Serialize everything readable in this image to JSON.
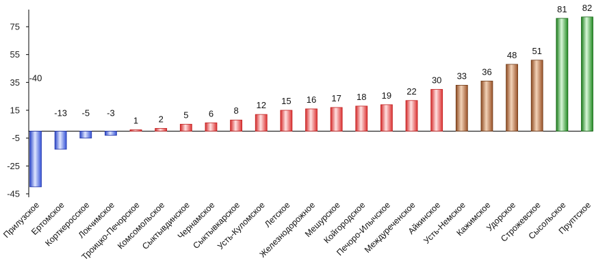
{
  "chart_data": {
    "type": "bar",
    "title": "",
    "xlabel": "",
    "ylabel": "",
    "ylim": [
      -45,
      85
    ],
    "yticks": [
      75,
      55,
      35,
      15,
      -5,
      -25,
      -45
    ],
    "grid": false,
    "legend": "none",
    "categories": [
      "Прилузское",
      "Ертомское",
      "Корткеросское",
      "Локчимское",
      "Троицко-Печорское",
      "Комсомольское",
      "Сыктывдинское",
      "Чернамское",
      "Сыктывкарское",
      "Усть-Куломское",
      "Летское",
      "Железнодорожное",
      "Мешурское",
      "Койгородское",
      "Печоро-Илычское",
      "Междуреченское",
      "Айкинское",
      "Усть-Немское",
      "Кажимское",
      "Удорское",
      "Строжевское",
      "Сысольское",
      "Пруптское"
    ],
    "values": [
      -40,
      -13,
      -5,
      -3,
      1,
      2,
      5,
      6,
      8,
      12,
      15,
      16,
      17,
      18,
      19,
      22,
      30,
      33,
      36,
      48,
      51,
      81,
      82
    ],
    "colors": {
      "negative": "#5577ee",
      "low": "#ee4444",
      "mid": "#b06a3a",
      "high": "#2e9a2e"
    }
  }
}
